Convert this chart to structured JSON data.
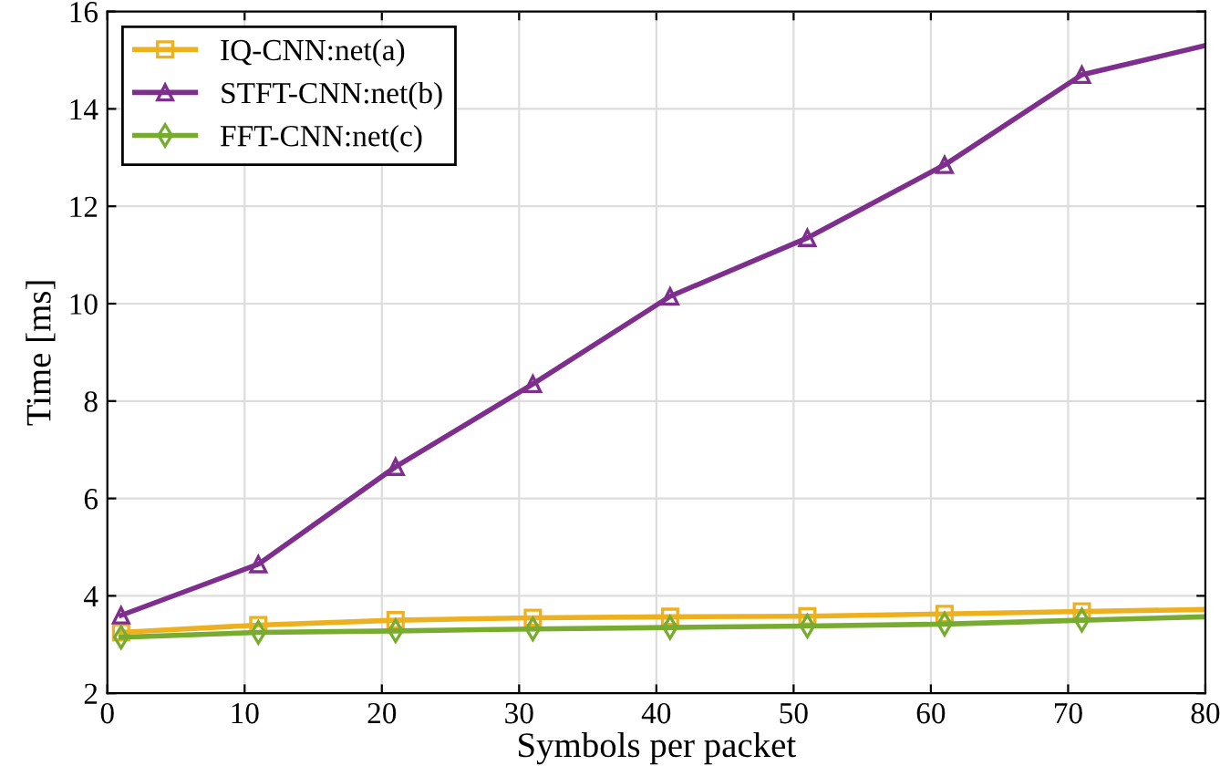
{
  "chart_data": {
    "type": "line",
    "xlabel": "Symbols per packet",
    "ylabel": "Time [ms]",
    "x": [
      1,
      11,
      21,
      31,
      41,
      51,
      61,
      71,
      80
    ],
    "series": [
      {
        "name": "IQ-CNN:net(a)",
        "color": "#edb120",
        "marker": "square",
        "values": [
          3.25,
          3.4,
          3.5,
          3.55,
          3.57,
          3.58,
          3.63,
          3.68,
          3.72
        ]
      },
      {
        "name": "STFT-CNN:net(b)",
        "color": "#7e2f8e",
        "marker": "triangle",
        "values": [
          3.6,
          4.65,
          6.65,
          8.35,
          10.15,
          11.35,
          12.85,
          14.7,
          15.3
        ]
      },
      {
        "name": "FFT-CNN:net(c)",
        "color": "#77ac30",
        "marker": "diamond",
        "values": [
          3.15,
          3.25,
          3.28,
          3.32,
          3.35,
          3.38,
          3.42,
          3.5,
          3.57
        ]
      }
    ],
    "xlim": [
      0,
      80
    ],
    "xticks": [
      0,
      10,
      20,
      30,
      40,
      50,
      60,
      70,
      80
    ],
    "ylim": [
      2,
      16
    ],
    "yticks": [
      2,
      4,
      6,
      8,
      10,
      12,
      14,
      16
    ],
    "grid": true,
    "legend": "top left",
    "line_style": "solid"
  }
}
